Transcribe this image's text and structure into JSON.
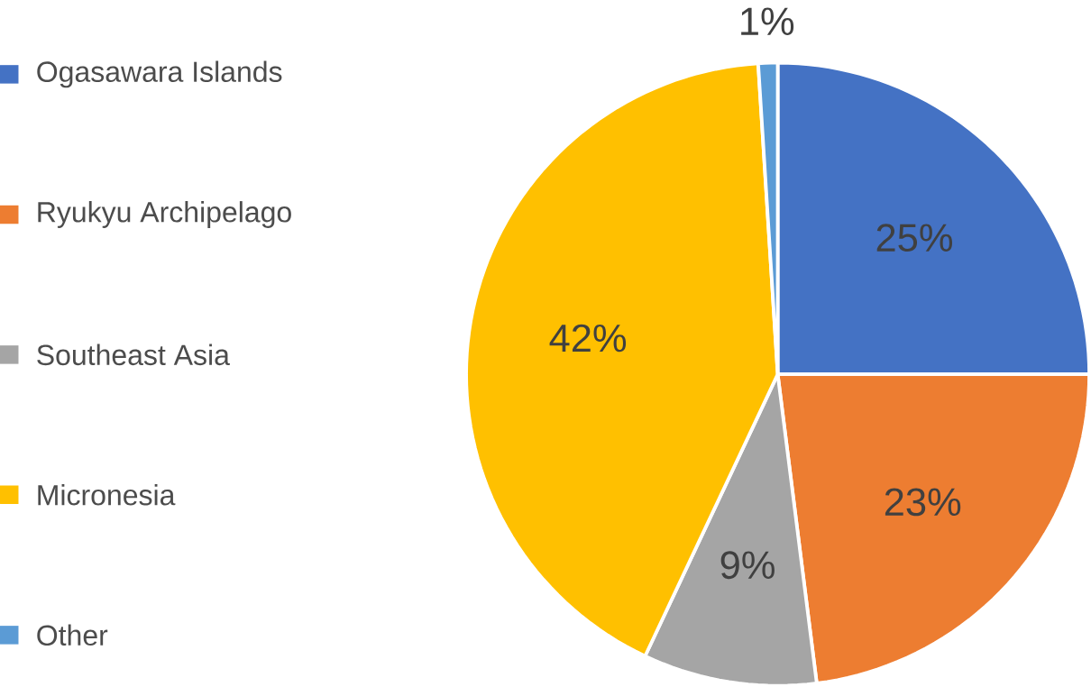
{
  "chart_data": {
    "type": "pie",
    "categories": [
      "Ogasawara Islands",
      "Ryukyu Archipelago",
      "Southeast Asia",
      "Micronesia",
      "Other"
    ],
    "values": [
      25,
      23,
      9,
      42,
      1
    ],
    "value_labels": [
      "25%",
      "23%",
      "9%",
      "42%",
      "1%"
    ],
    "colors": [
      "#4472c4",
      "#ed7d31",
      "#a5a5a5",
      "#ffc000",
      "#5b9bd5"
    ],
    "legend": "left"
  }
}
